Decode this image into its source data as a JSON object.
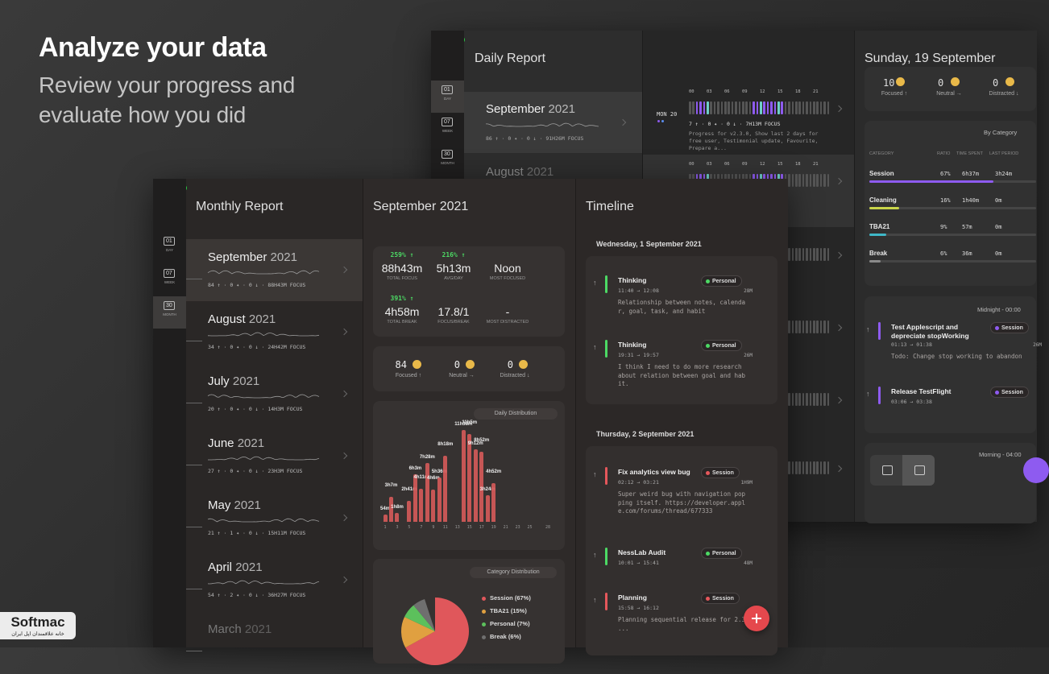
{
  "header": {
    "title": "Analyze your data",
    "subtitle": "Review your progress and evaluate how you did"
  },
  "watermark": {
    "brand": "Softmac",
    "tagline": "خانه علاقمندان اپل ایران"
  },
  "back_window": {
    "sidebar": [
      {
        "num": "01",
        "label": "DAY"
      },
      {
        "num": "07",
        "label": "WEEK"
      },
      {
        "num": "30",
        "label": "MONTH"
      }
    ],
    "list_title": "Daily Report",
    "items": [
      {
        "month": "September",
        "year": "2021",
        "stats": "86 ↑ · 0 ✦ · 0 ↓ · 91H26M FOCUS"
      },
      {
        "month": "August",
        "year": "2021"
      }
    ],
    "day_row": {
      "hours": [
        "00",
        "03",
        "06",
        "09",
        "12",
        "15",
        "18",
        "21"
      ],
      "day": "MON 20",
      "stats": "7 ↑ · 0 ✦ · 0 ↓ · 7H13M FOCUS",
      "note": "Progress for v2.3.0, Show last 2 days for free user, Testimonial update, Favourite, Prepare a..."
    },
    "detail": {
      "title": "Sunday, 19 September",
      "mood": [
        {
          "count": 10,
          "label": "Focused ↑"
        },
        {
          "count": 0,
          "label": "Neutral →"
        },
        {
          "count": 0,
          "label": "Distracted ↓"
        }
      ],
      "by_category": {
        "title": "By Category",
        "columns": [
          "CATEGORY",
          "RATIO",
          "TIME SPENT",
          "LAST PERIOD"
        ],
        "rows": [
          {
            "name": "Session",
            "ratio": 67,
            "ratio_label": "67%",
            "time": "6h37m",
            "last": "3h24m",
            "color": "#8e5bf0"
          },
          {
            "name": "Cleaning",
            "ratio": 16,
            "ratio_label": "16%",
            "time": "1h40m",
            "last": "0m",
            "color": "#c9d54a"
          },
          {
            "name": "TBA21",
            "ratio": 9,
            "ratio_label": "9%",
            "time": "57m",
            "last": "0m",
            "color": "#3fb8c8"
          },
          {
            "name": "Break",
            "ratio": 6,
            "ratio_label": "6%",
            "time": "36m",
            "last": "0m",
            "color": "#8a8a8a"
          }
        ]
      },
      "period1": {
        "label": "Midnight - 00:00",
        "entries": [
          {
            "trend": "↑",
            "title": "Test Applescript and depreciate stopWorking",
            "time": "01:13 → 01:38",
            "duration": "26M",
            "tag": "Session",
            "color": "#8e5bf0",
            "note": "Todo: Change stop working to abandon"
          },
          {
            "trend": "↑",
            "title": "Release TestFlight",
            "time": "03:06 → 03:38",
            "tag": "Session",
            "color": "#8e5bf0"
          }
        ]
      },
      "period2": {
        "label": "Morning - 04:00"
      }
    }
  },
  "front_window": {
    "sidebar": [
      {
        "num": "01",
        "label": "DAY"
      },
      {
        "num": "07",
        "label": "WEEK"
      },
      {
        "num": "30",
        "label": "MONTH"
      }
    ],
    "list_title": "Monthly Report",
    "months": [
      {
        "month": "September",
        "year": "2021",
        "stats": "84 ↑ · 0 ✦ · 0 ↓ · 88H43M FOCUS"
      },
      {
        "month": "August",
        "year": "2021",
        "stats": "34 ↑ · 0 ✦ · 0 ↓ · 24H42M FOCUS"
      },
      {
        "month": "July",
        "year": "2021",
        "stats": "20 ↑ · 0 ✦ · 0 ↓ · 14H3M FOCUS"
      },
      {
        "month": "June",
        "year": "2021",
        "stats": "27 ↑ · 0 ✦ · 0 ↓ · 23H3M FOCUS"
      },
      {
        "month": "May",
        "year": "2021",
        "stats": "21 ↑ · 1 ✦ · 0 ↓ · 15H11M FOCUS"
      },
      {
        "month": "April",
        "year": "2021",
        "stats": "54 ↑ · 2 ✦ · 0 ↓ · 36H27M FOCUS"
      },
      {
        "month": "March",
        "year": "2021"
      }
    ],
    "summary": {
      "title": "September 2021",
      "stats": [
        {
          "change": "259% ↑",
          "value": "88h43m",
          "caption": "TOTAL FOCUS"
        },
        {
          "change": "216% ↑",
          "value": "5h13m",
          "caption": "AVG/DAY"
        },
        {
          "value": "Noon",
          "caption": "MOST FOCUSED"
        },
        {
          "change": "391% ↑",
          "value": "4h58m",
          "caption": "TOTAL BREAK"
        },
        {
          "value": "17.8/1",
          "caption": "FOCUS/BREAK"
        },
        {
          "value": "-",
          "caption": "MOST DISTRACTED"
        }
      ],
      "mood": [
        {
          "count": 84,
          "label": "Focused ↑"
        },
        {
          "count": 0,
          "label": "Neutral →"
        },
        {
          "count": 0,
          "label": "Distracted ↓"
        }
      ]
    },
    "daily_distribution": {
      "title": "Daily Distribution",
      "color": "#d65a5a",
      "xlim": [
        1,
        28
      ],
      "ylim": [
        0,
        720
      ],
      "xticks": [
        1,
        3,
        5,
        7,
        9,
        11,
        13,
        15,
        17,
        19,
        21,
        23,
        25,
        28
      ],
      "bars": [
        {
          "day": 1,
          "value": 54,
          "label": "54m"
        },
        {
          "day": 2,
          "value": 187,
          "label": "3h7m"
        },
        {
          "day": 3,
          "value": 68,
          "label": "1h8m"
        },
        {
          "day": 5,
          "value": 161,
          "label": "2h41m"
        },
        {
          "day": 6,
          "value": 363,
          "label": "6h3m"
        },
        {
          "day": 7,
          "value": 251,
          "label": "4h11m"
        },
        {
          "day": 8,
          "value": 448,
          "label": "7h28m"
        },
        {
          "day": 9,
          "value": 246,
          "label": "4h6m"
        },
        {
          "day": 10,
          "value": 336,
          "label": "5h36m"
        },
        {
          "day": 11,
          "value": 498,
          "label": "8h18m"
        },
        {
          "day": 14,
          "value": 698,
          "label": "11h38m"
        },
        {
          "day": 15,
          "value": 665,
          "label": "11h5m"
        },
        {
          "day": 16,
          "value": 552,
          "label": "9h12m"
        },
        {
          "day": 17,
          "value": 532,
          "label": "8h52m"
        },
        {
          "day": 18,
          "value": 204,
          "label": "3h24m"
        },
        {
          "day": 19,
          "value": 292,
          "label": "4h52m"
        }
      ]
    },
    "category_distribution": {
      "title": "Category Distribution",
      "slices": [
        {
          "name": "Session (67%)",
          "value": 67,
          "color": "#e0575b"
        },
        {
          "name": "TBA21 (15%)",
          "value": 15,
          "color": "#e0a040"
        },
        {
          "name": "Personal (7%)",
          "value": 7,
          "color": "#5cc05c"
        },
        {
          "name": "Break (6%)",
          "value": 6,
          "color": "#6f6f6f"
        }
      ]
    },
    "timeline": {
      "title": "Timeline",
      "days": [
        {
          "date": "Wednesday, 1 September 2021",
          "entries": [
            {
              "trend": "↑",
              "title": "Thinking",
              "time": "11:40 → 12:08",
              "duration": "28M",
              "tag": "Personal",
              "color": "#4cd964",
              "note": "Relationship between notes, calendar, goal, task, and habit"
            },
            {
              "trend": "↑",
              "title": "Thinking",
              "time": "19:31 → 19:57",
              "duration": "26M",
              "tag": "Personal",
              "color": "#4cd964",
              "note": "I think I need to do more research about relation between goal and habit."
            }
          ]
        },
        {
          "date": "Thursday, 2 September 2021",
          "entries": [
            {
              "trend": "↑",
              "title": "Fix analytics view bug",
              "time": "02:12 → 03:21",
              "duration": "1H9M",
              "tag": "Session",
              "color": "#e5575b",
              "note": "Super weird bug with navigation popping itself. https://developer.apple.com/forums/thread/677333"
            },
            {
              "trend": "↑",
              "title": "NessLab Audit",
              "time": "10:01 → 15:41",
              "duration": "48M",
              "tag": "Personal",
              "color": "#4cd964"
            },
            {
              "trend": "↑",
              "title": "Planning",
              "time": "15:58 → 16:12",
              "tag": "Session",
              "color": "#e5575b",
              "note": "Planning sequential release for 2.3 ..."
            }
          ]
        }
      ]
    }
  }
}
